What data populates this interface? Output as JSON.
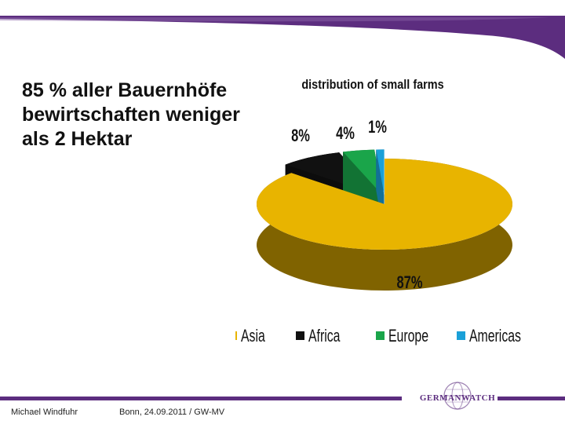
{
  "slide": {
    "title": "85 % aller Bauernhöfe bewirtschaften weniger als 2 Hektar"
  },
  "footer": {
    "author": "Michael Windfuhr",
    "date": "Bonn, 24.09.2011 / GW-MV",
    "logo": "GERMANWATCH",
    "logo_icon": "globe-icon"
  },
  "colors": {
    "brand_purple": "#5c2d7f"
  },
  "chart_data": {
    "type": "pie",
    "title": "distribution of small farms",
    "legend_position": "bottom",
    "categories": [
      "Asia",
      "Africa",
      "Europe",
      "Americas"
    ],
    "values": [
      87,
      8,
      4,
      1
    ],
    "labels": [
      "87%",
      "8%",
      "4%",
      "1%"
    ],
    "colors": [
      "#e8b400",
      "#111111",
      "#1aa54a",
      "#1aa0d8"
    ]
  }
}
